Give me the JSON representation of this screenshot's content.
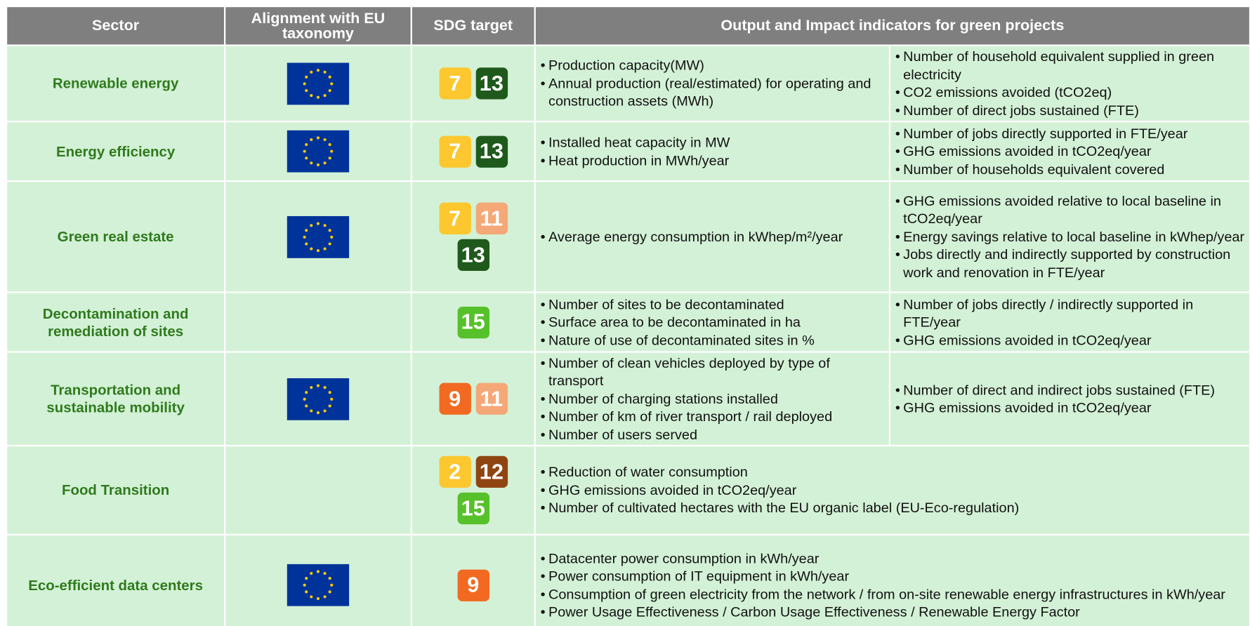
{
  "header": [
    "Sector",
    "Alignment with EU taxonomy",
    "SDG target",
    "Output and Impact indicators for green projects"
  ],
  "rows": [
    {
      "sector": "Renewable energy",
      "eu_taxonomy": true,
      "sdg": [
        {
          "number": 7,
          "color": "#fcc72f"
        },
        {
          "number": 13,
          "color": "#1f5a1c"
        }
      ],
      "indicators": [
        [
          "Production capacity(MW)",
          "Annual production (real/estimated) for operating and construction assets (MWh)"
        ],
        [
          "Number of household equivalent supplied in green electricity",
          "CO2 emissions avoided (tCO2eq)",
          "Number of direct jobs sustained (FTE)"
        ]
      ]
    },
    {
      "sector": "Energy efficiency",
      "eu_taxonomy": true,
      "sdg": [
        {
          "number": 7,
          "color": "#fcc72f"
        },
        {
          "number": 13,
          "color": "#1f5a1c"
        }
      ],
      "indicators": [
        [
          "Installed heat capacity in MW",
          "Heat production in MWh/year"
        ],
        [
          "Number of jobs directly supported in FTE/year",
          "GHG emissions avoided in tCO2eq/year",
          "Number of households equivalent covered"
        ]
      ]
    },
    {
      "sector": "Green real estate",
      "eu_taxonomy": true,
      "sdg": [
        {
          "number": 7,
          "color": "#fcc72f"
        },
        {
          "number": 11,
          "color": "#f5a877"
        },
        {
          "number": 13,
          "color": "#1f5a1c"
        }
      ],
      "indicators": [
        [
          "Average energy consumption in kWhep/m²/year"
        ],
        [
          "GHG emissions avoided relative to local baseline in tCO2eq/year",
          "Energy savings relative to local baseline in kWhep/year",
          "Jobs directly and indirectly supported by construction work and renovation in FTE/year"
        ]
      ]
    },
    {
      "sector": "Decontamination and remediation of sites",
      "eu_taxonomy": false,
      "sdg": [
        {
          "number": 15,
          "color": "#56c12a"
        }
      ],
      "indicators": [
        [
          "Number of sites to be decontaminated",
          "Surface area to be decontaminated in ha",
          "Nature of use of decontaminated sites in %"
        ],
        [
          "Number of jobs directly / indirectly supported in FTE/year",
          "GHG emissions avoided in tCO2eq/year"
        ]
      ]
    },
    {
      "sector": "Transportation and sustainable mobility",
      "eu_taxonomy": true,
      "sdg": [
        {
          "number": 9,
          "color": "#f26a21"
        },
        {
          "number": 11,
          "color": "#f5a877"
        }
      ],
      "indicators": [
        [
          "Number of clean vehicles deployed by type of transport",
          "Number of charging stations installed",
          "Number of km of river transport / rail deployed",
          "Number of users served"
        ],
        [
          "Number of direct and indirect jobs sustained (FTE)",
          "GHG emissions avoided in tCO2eq/year"
        ]
      ]
    },
    {
      "sector": "Food Transition",
      "eu_taxonomy": false,
      "sdg": [
        {
          "number": 2,
          "color": "#fcc72f"
        },
        {
          "number": 12,
          "color": "#8f4512"
        },
        {
          "number": 15,
          "color": "#56c12a"
        }
      ],
      "indicators": [
        [
          "Reduction of water consumption",
          "GHG emissions avoided in tCO2eq/year",
          "Number of cultivated hectares with the EU organic label (EU-Eco-regulation)"
        ]
      ]
    },
    {
      "sector": "Eco-efficient data centers",
      "eu_taxonomy": true,
      "sdg": [
        {
          "number": 9,
          "color": "#f26a21"
        }
      ],
      "indicators": [
        [
          "Datacenter power consumption in kWh/year",
          "Power consumption of IT equipment in kWh/year",
          "Consumption of green electricity from the network / from on-site renewable energy infrastructures in kWh/year",
          "Power Usage Effectiveness / Carbon Usage Effectiveness / Renewable Energy Factor"
        ]
      ]
    }
  ]
}
